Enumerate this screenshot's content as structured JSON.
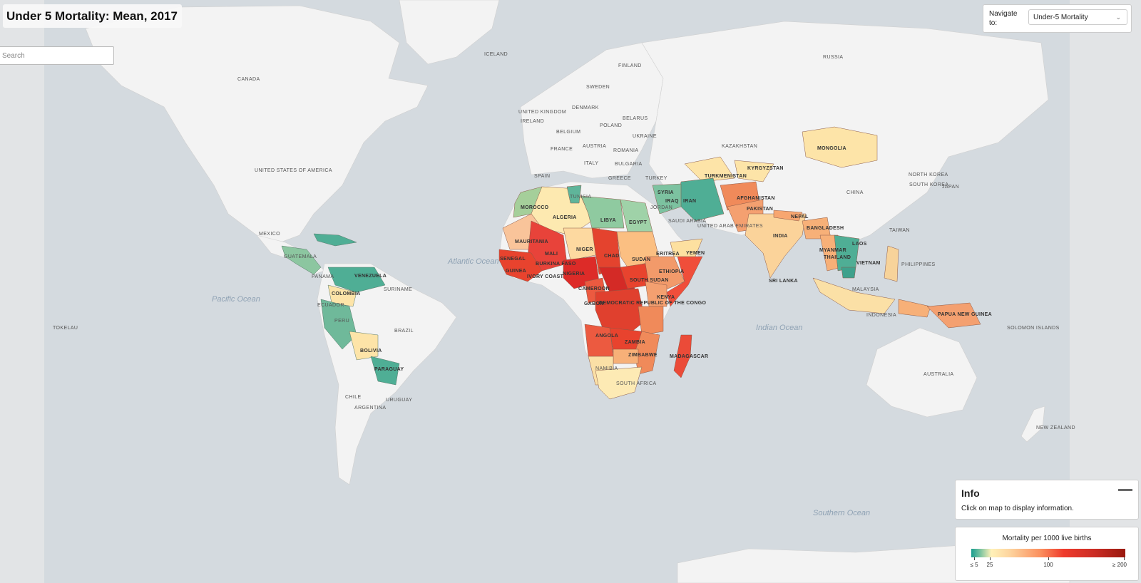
{
  "title": "Under 5 Mortality: Mean, 2017",
  "search": {
    "placeholder": "Search"
  },
  "navigate": {
    "label": "Navigate to:",
    "selected": "Under-5 Mortality",
    "chevron_icon": "chevron-down-icon"
  },
  "info": {
    "title": "Info",
    "text": "Click on map to display information.",
    "collapse_icon": "minus-icon"
  },
  "legend": {
    "title": "Mortality per 1000 live births",
    "ticks": [
      "≤ 5",
      "25",
      "100",
      "≥ 200"
    ],
    "colors": [
      "#1b9e8f",
      "#fff1b8",
      "#fb8f5e",
      "#ef3b2c",
      "#99190f"
    ]
  },
  "colors": {
    "ocean": "#d4dadf",
    "land": "#f3f3f3",
    "border": "#cfcfcf"
  },
  "labels": {
    "iceland": "ICELAND",
    "russia": "RUSSIA",
    "finland": "FINLAND",
    "sweden": "SWEDEN",
    "canada": "CANADA",
    "united_kingdom": "UNITED KINGDOM",
    "ireland": "IRELAND",
    "denmark": "DENMARK",
    "belarus": "BELARUS",
    "poland": "POLAND",
    "belgium": "BELGIUM",
    "ukraine": "UKRAINE",
    "kazakhstan": "KAZAKHSTAN",
    "mongolia": "MONGOLIA",
    "france": "FRANCE",
    "austria": "AUSTRIA",
    "romania": "ROMANIA",
    "italy": "ITALY",
    "bulgaria": "BULGARIA",
    "spain": "SPAIN",
    "greece": "GREECE",
    "turkey": "TURKEY",
    "turkmenistan": "TURKMENISTAN",
    "kyrgyzstan": "KYRGYZSTAN",
    "usa": "UNITED STATES OF AMERICA",
    "north_korea": "NORTH KOREA",
    "south_korea": "SOUTH KOREA",
    "japan": "JAPAN",
    "china": "CHINA",
    "tunisia": "TUNISIA",
    "syria": "SYRIA",
    "iraq": "IRAQ",
    "iran": "IRAN",
    "afghanistan": "AFGHANISTAN",
    "morocco": "MOROCCO",
    "algeria": "ALGERIA",
    "libya": "LIBYA",
    "egypt": "EGYPT",
    "jordan": "JORDAN",
    "pakistan": "PAKISTAN",
    "nepal": "NEPAL",
    "bangladesh": "BANGLADESH",
    "mexico": "MEXICO",
    "saudi_arabia": "SAUDI ARABIA",
    "uae": "UNITED ARAB EMIRATES",
    "india": "INDIA",
    "taiwan": "TAIWAN",
    "mauritania": "MAURITANIA",
    "mali": "MALI",
    "niger": "NIGER",
    "chad": "CHAD",
    "sudan": "SUDAN",
    "eritrea": "ERITREA",
    "yemen": "YEMEN",
    "guatemala": "GUATEMALA",
    "myanmar": "MYANMAR",
    "laos": "LAOS",
    "thailand": "THAILAND",
    "vietnam": "VIETNAM",
    "philippines": "PHILIPPINES",
    "senegal": "SENEGAL",
    "burkina_faso": "BURKINA FASO",
    "ethiopia": "ETHIOPIA",
    "panama": "PANAMA",
    "venezuela": "VENEZUELA",
    "guinea": "GUINEA",
    "ivory_coast": "IVORY COAST",
    "nigeria": "NIGERIA",
    "south_sudan": "SOUTH SUDAN",
    "sri_lanka": "SRI LANKA",
    "suriname": "SURINAME",
    "colombia": "COLOMBIA",
    "cameroon": "CAMEROON",
    "malaysia": "MALAYSIA",
    "kenya": "KENYA",
    "gabon": "GABON",
    "ecuador": "ECUADOR",
    "drc": "DEMOCRATIC REPUBLIC OF THE CONGO",
    "indonesia": "INDONESIA",
    "papua_new_guinea": "PAPUA NEW GUINEA",
    "peru": "PERU",
    "brazil": "BRAZIL",
    "tokelau": "TOKELAU",
    "angola": "ANGOLA",
    "zambia": "ZAMBIA",
    "solomon_islands": "SOLOMON ISLANDS",
    "bolivia": "BOLIVIA",
    "zimbabwe": "ZIMBABWE",
    "madagascar": "MADAGASCAR",
    "namibia": "NAMIBIA",
    "paraguay": "PARAGUAY",
    "australia": "AUSTRALIA",
    "south_africa": "SOUTH AFRICA",
    "chile": "CHILE",
    "uruguay": "URUGUAY",
    "argentina": "ARGENTINA",
    "new_zealand": "NEW ZEALAND"
  },
  "oceans": {
    "atlantic": "Atlantic Ocean",
    "pacific": "Pacific Ocean",
    "indian": "Indian Ocean",
    "southern": "Southern Ocean"
  }
}
